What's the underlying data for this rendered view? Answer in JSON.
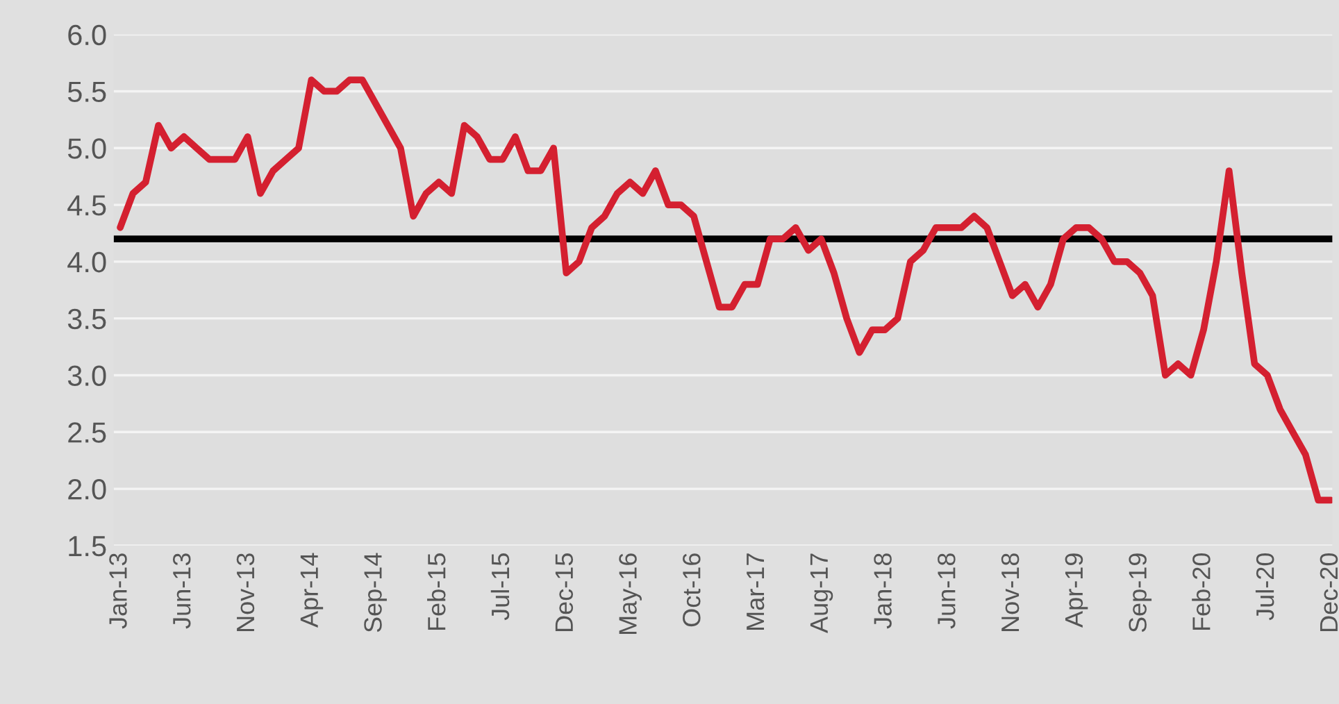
{
  "chart_data": {
    "type": "line",
    "categories": [
      "Jan-13",
      null,
      null,
      null,
      null,
      "Jun-13",
      null,
      null,
      null,
      null,
      "Nov-13",
      null,
      null,
      null,
      null,
      "Apr-14",
      null,
      null,
      null,
      null,
      "Sep-14",
      null,
      null,
      null,
      null,
      "Feb-15",
      null,
      null,
      null,
      null,
      "Jul-15",
      null,
      null,
      null,
      null,
      "Dec-15",
      null,
      null,
      null,
      null,
      "May-16",
      null,
      null,
      null,
      null,
      "Oct-16",
      null,
      null,
      null,
      null,
      "Mar-17",
      null,
      null,
      null,
      null,
      "Aug-17",
      null,
      null,
      null,
      null,
      "Jan-18",
      null,
      null,
      null,
      null,
      "Jun-18",
      null,
      null,
      null,
      null,
      "Nov-18",
      null,
      null,
      null,
      null,
      "Apr-19",
      null,
      null,
      null,
      null,
      "Sep-19",
      null,
      null,
      null,
      null,
      "Feb-20",
      null,
      null,
      null,
      null,
      "Jul-20",
      null,
      null,
      null,
      null,
      "Dec-20"
    ],
    "series": [
      {
        "color": "#d42030",
        "values": [
          4.3,
          4.6,
          4.7,
          5.2,
          5.0,
          5.1,
          5.0,
          4.9,
          4.9,
          4.9,
          5.1,
          4.6,
          4.8,
          4.9,
          5.0,
          5.6,
          5.5,
          5.5,
          5.6,
          5.6,
          5.4,
          5.2,
          5.0,
          4.4,
          4.6,
          4.7,
          4.6,
          5.2,
          5.1,
          4.9,
          4.9,
          5.1,
          4.8,
          4.8,
          5.0,
          3.9,
          4.0,
          4.3,
          4.4,
          4.6,
          4.7,
          4.6,
          4.8,
          4.5,
          4.5,
          4.4,
          4.0,
          3.6,
          3.6,
          3.8,
          3.8,
          4.2,
          4.2,
          4.3,
          4.1,
          4.2,
          3.9,
          3.5,
          3.2,
          3.4,
          3.4,
          3.5,
          4.0,
          4.1,
          4.3,
          4.3,
          4.3,
          4.4,
          4.3,
          4.0,
          3.7,
          3.8,
          3.6,
          3.8,
          4.2,
          4.3,
          4.3,
          4.2,
          4.0,
          4.0,
          3.9,
          3.7,
          3.0,
          3.1,
          3.0,
          3.4,
          4.0,
          4.8,
          3.9,
          3.1,
          3.0,
          2.7,
          2.5,
          2.3,
          1.9,
          1.9
        ]
      }
    ],
    "ylim": [
      1.5,
      6.0
    ],
    "yticks": [
      1.5,
      {
        "value": 2,
        "label": "2.0"
      },
      2.5,
      {
        "value": 3,
        "label": "3.0"
      },
      3.5,
      {
        "value": 4,
        "label": "4.0"
      },
      4.5,
      {
        "value": 5,
        "label": "5.0"
      },
      5.5,
      {
        "value": 6,
        "label": "6.0"
      }
    ],
    "ref_lines": [
      {
        "axis": "y",
        "value": 4.2,
        "color": "#000000"
      }
    ],
    "grid": "y",
    "legend": false,
    "marker": "none",
    "line_style": "solid"
  }
}
